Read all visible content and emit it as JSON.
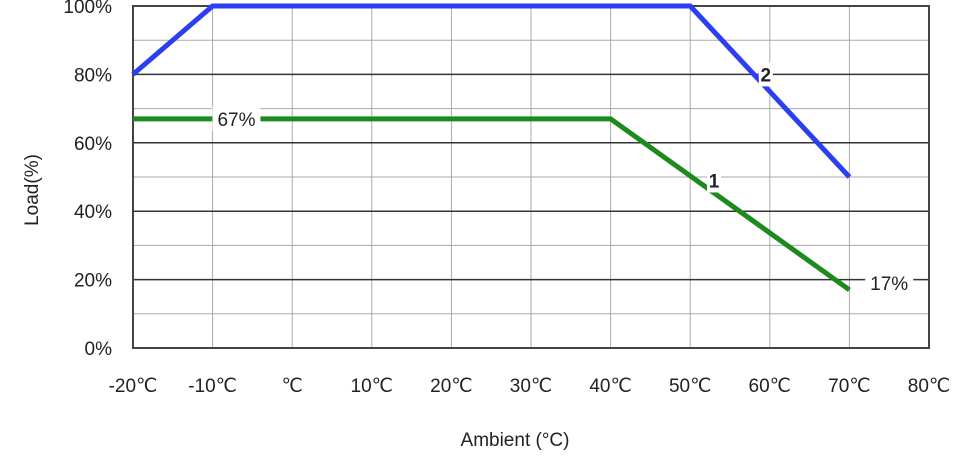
{
  "chart_data": {
    "type": "line",
    "xlabel": "Ambient (°C)",
    "ylabel": "Load(%)",
    "xlim": [
      -20,
      80
    ],
    "ylim": [
      0,
      100
    ],
    "x_ticks": [
      {
        "value": -20,
        "label": "-20℃"
      },
      {
        "value": -10,
        "label": "-10℃"
      },
      {
        "value": 0,
        "label": "℃"
      },
      {
        "value": 10,
        "label": "10℃"
      },
      {
        "value": 20,
        "label": "20℃"
      },
      {
        "value": 30,
        "label": "30℃"
      },
      {
        "value": 40,
        "label": "40℃"
      },
      {
        "value": 50,
        "label": "50℃"
      },
      {
        "value": 60,
        "label": "60℃"
      },
      {
        "value": 70,
        "label": "70℃"
      },
      {
        "value": 80,
        "label": "80℃"
      }
    ],
    "y_ticks": [
      {
        "value": 0,
        "label": "0%"
      },
      {
        "value": 20,
        "label": "20%"
      },
      {
        "value": 40,
        "label": "40%"
      },
      {
        "value": 60,
        "label": "60%"
      },
      {
        "value": 80,
        "label": "80%"
      },
      {
        "value": 100,
        "label": "100%"
      }
    ],
    "grid": true,
    "series": [
      {
        "name": "2",
        "color": "#2b3ff0",
        "points": [
          [
            -20,
            80
          ],
          [
            -10,
            100
          ],
          [
            50,
            100
          ],
          [
            70,
            50
          ]
        ]
      },
      {
        "name": "1",
        "color": "#1d8a1d",
        "points": [
          [
            -20,
            67
          ],
          [
            40,
            67
          ],
          [
            70,
            17
          ]
        ]
      }
    ],
    "annotations": [
      {
        "text": "67%",
        "x": -7,
        "y": 67
      },
      {
        "text": "17%",
        "x": 75,
        "y": 19
      },
      {
        "text": "1",
        "x": 53,
        "y": 49
      },
      {
        "text": "2",
        "x": 59.5,
        "y": 80
      }
    ]
  }
}
